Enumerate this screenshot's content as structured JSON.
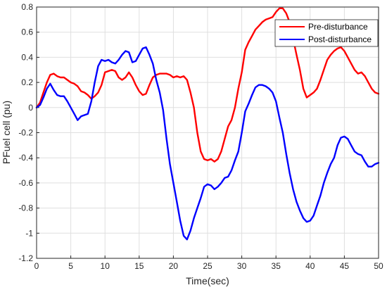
{
  "chart_data": {
    "type": "line",
    "xlabel": "Time(sec)",
    "ylabel": "PFuel cell (pu)",
    "xlim": [
      0,
      50
    ],
    "ylim": [
      -1.2,
      0.8
    ],
    "xticks": [
      0,
      5,
      10,
      15,
      20,
      25,
      30,
      35,
      40,
      45,
      50
    ],
    "yticks": [
      -1.2,
      -1,
      -0.8,
      -0.6,
      -0.4,
      -0.2,
      0,
      0.2,
      0.4,
      0.6,
      0.8
    ],
    "grid": true,
    "legend_position": "top-right",
    "series": [
      {
        "name": "Pre-disturbance",
        "color": "#ff0000",
        "x": [
          0,
          0.5,
          1,
          1.5,
          2,
          2.5,
          3,
          3.5,
          4,
          4.5,
          5,
          5.5,
          6,
          6.5,
          7,
          7.5,
          8,
          8.5,
          9,
          9.5,
          10,
          10.5,
          11,
          11.5,
          12,
          12.5,
          13,
          13.5,
          14,
          14.5,
          15,
          15.5,
          16,
          16.5,
          17,
          17.5,
          18,
          18.5,
          19,
          19.5,
          20,
          20.5,
          21,
          21.5,
          22,
          22.5,
          23,
          23.5,
          24,
          24.5,
          25,
          25.5,
          26,
          26.5,
          27,
          27.5,
          28,
          28.5,
          29,
          29.5,
          30,
          30.5,
          31,
          31.5,
          32,
          32.5,
          33,
          33.5,
          34,
          34.5,
          35,
          35.5,
          36,
          36.5,
          37,
          37.5,
          38,
          38.5,
          39,
          39.5,
          40,
          40.5,
          41,
          41.5,
          42,
          42.5,
          43,
          43.5,
          44,
          44.5,
          45,
          45.5,
          46,
          46.5,
          47,
          47.5,
          48,
          48.5,
          49,
          49.5,
          50
        ],
        "y": [
          0.0,
          0.04,
          0.12,
          0.2,
          0.26,
          0.27,
          0.25,
          0.24,
          0.24,
          0.22,
          0.2,
          0.19,
          0.17,
          0.13,
          0.12,
          0.1,
          0.07,
          0.09,
          0.12,
          0.18,
          0.28,
          0.29,
          0.3,
          0.29,
          0.24,
          0.22,
          0.24,
          0.28,
          0.24,
          0.18,
          0.13,
          0.1,
          0.11,
          0.18,
          0.24,
          0.26,
          0.27,
          0.27,
          0.27,
          0.26,
          0.24,
          0.25,
          0.24,
          0.25,
          0.22,
          0.12,
          0.0,
          -0.2,
          -0.35,
          -0.41,
          -0.42,
          -0.41,
          -0.43,
          -0.41,
          -0.35,
          -0.25,
          -0.15,
          -0.1,
          0.0,
          0.15,
          0.28,
          0.46,
          0.52,
          0.57,
          0.62,
          0.65,
          0.68,
          0.7,
          0.71,
          0.72,
          0.76,
          0.79,
          0.79,
          0.75,
          0.68,
          0.55,
          0.42,
          0.3,
          0.15,
          0.08,
          0.1,
          0.12,
          0.15,
          0.22,
          0.3,
          0.38,
          0.42,
          0.45,
          0.47,
          0.48,
          0.45,
          0.4,
          0.35,
          0.3,
          0.27,
          0.28,
          0.25,
          0.2,
          0.15,
          0.12,
          0.11
        ]
      },
      {
        "name": "Post-disturbance",
        "color": "#0000ff",
        "x": [
          0,
          0.5,
          1,
          1.5,
          2,
          2.5,
          3,
          3.5,
          4,
          4.5,
          5,
          5.5,
          6,
          6.5,
          7,
          7.5,
          8,
          8.5,
          9,
          9.5,
          10,
          10.5,
          11,
          11.5,
          12,
          12.5,
          13,
          13.5,
          14,
          14.5,
          15,
          15.5,
          16,
          16.5,
          17,
          17.5,
          18,
          18.5,
          19,
          19.5,
          20,
          20.5,
          21,
          21.5,
          22,
          22.5,
          23,
          23.5,
          24,
          24.5,
          25,
          25.5,
          26,
          26.5,
          27,
          27.5,
          28,
          28.5,
          29,
          29.5,
          30,
          30.5,
          31,
          31.5,
          32,
          32.5,
          33,
          33.5,
          34,
          34.5,
          35,
          35.5,
          36,
          36.5,
          37,
          37.5,
          38,
          38.5,
          39,
          39.5,
          40,
          40.5,
          41,
          41.5,
          42,
          42.5,
          43,
          43.5,
          44,
          44.5,
          45,
          45.5,
          46,
          46.5,
          47,
          47.5,
          48,
          48.5,
          49,
          49.5,
          50
        ],
        "y": [
          0.0,
          0.02,
          0.08,
          0.15,
          0.19,
          0.14,
          0.1,
          0.09,
          0.09,
          0.05,
          0.0,
          -0.05,
          -0.1,
          -0.07,
          -0.06,
          -0.05,
          0.05,
          0.2,
          0.33,
          0.38,
          0.37,
          0.38,
          0.36,
          0.35,
          0.38,
          0.42,
          0.45,
          0.44,
          0.36,
          0.37,
          0.42,
          0.47,
          0.48,
          0.42,
          0.35,
          0.22,
          0.12,
          -0.02,
          -0.25,
          -0.45,
          -0.6,
          -0.75,
          -0.9,
          -1.02,
          -1.05,
          -0.98,
          -0.88,
          -0.8,
          -0.72,
          -0.63,
          -0.61,
          -0.62,
          -0.65,
          -0.63,
          -0.6,
          -0.56,
          -0.55,
          -0.5,
          -0.42,
          -0.35,
          -0.2,
          -0.03,
          0.03,
          0.1,
          0.16,
          0.18,
          0.18,
          0.17,
          0.15,
          0.12,
          0.05,
          -0.08,
          -0.2,
          -0.37,
          -0.52,
          -0.65,
          -0.75,
          -0.82,
          -0.88,
          -0.91,
          -0.9,
          -0.86,
          -0.78,
          -0.7,
          -0.6,
          -0.52,
          -0.45,
          -0.4,
          -0.3,
          -0.24,
          -0.23,
          -0.25,
          -0.3,
          -0.35,
          -0.37,
          -0.38,
          -0.43,
          -0.47,
          -0.47,
          -0.45,
          -0.44
        ]
      }
    ]
  }
}
